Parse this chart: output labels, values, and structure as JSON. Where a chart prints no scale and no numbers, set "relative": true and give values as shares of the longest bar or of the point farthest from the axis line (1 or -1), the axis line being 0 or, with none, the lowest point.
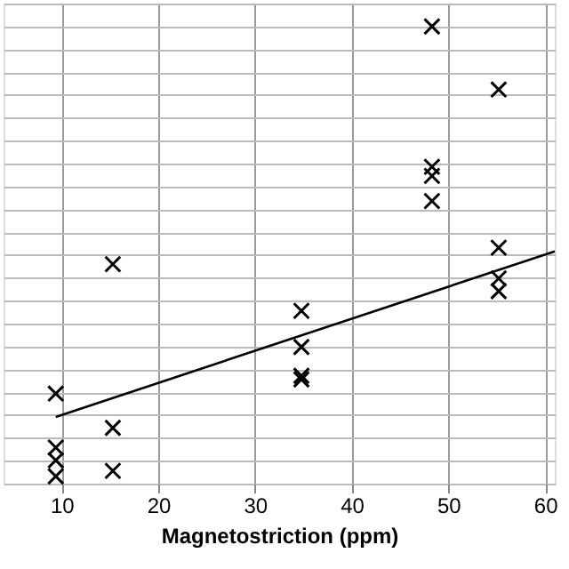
{
  "chart_data": {
    "type": "scatter",
    "xlabel": "Magnetostriction (ppm)",
    "relative": true,
    "xlim": [
      4,
      61
    ],
    "xticks": [
      10,
      20,
      30,
      40,
      50,
      60
    ],
    "grid": true,
    "series": [
      {
        "color": "#000000",
        "marker": "cross",
        "x": [
          9.4,
          9.4,
          9.4,
          9.4,
          15.3,
          15.3,
          15.3,
          34.8,
          34.8,
          34.8,
          34.8,
          48.3,
          48.3,
          48.3,
          48.3,
          55.2,
          55.2,
          55.2,
          55.2
        ],
        "values": [
          0.197,
          0.079,
          0.051,
          0.016,
          0.48,
          0.122,
          0.028,
          0.378,
          0.299,
          0.236,
          0.228,
          1.0,
          0.693,
          0.673,
          0.618,
          0.862,
          0.516,
          0.449,
          0.421
        ]
      },
      {
        "type": "line",
        "color": "#000000",
        "marker": "none",
        "line_style": "solid",
        "x": [
          9.4,
          61
        ],
        "values": [
          0.146,
          0.508
        ]
      }
    ]
  }
}
